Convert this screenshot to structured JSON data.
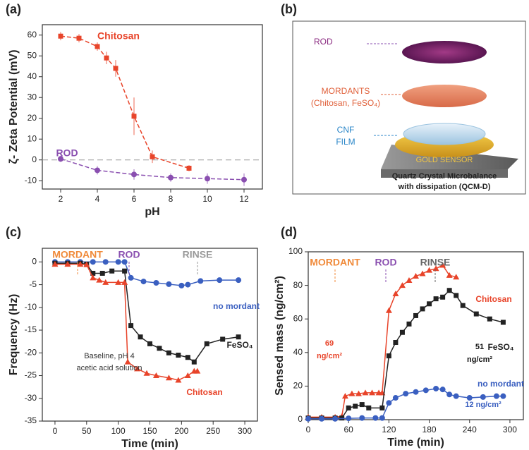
{
  "panel_labels": [
    "(a)",
    "(b)",
    "(c)",
    "(d)"
  ],
  "chart_data": [
    {
      "type": "line",
      "xlabel": "pH",
      "ylabel": "ζ- Zeta Potential (mV)",
      "xlim": [
        1,
        13
      ],
      "xticks": [
        2,
        4,
        6,
        8,
        10,
        12
      ],
      "ylim": [
        -14,
        65
      ],
      "yticks": [
        -10,
        0,
        10,
        20,
        30,
        40,
        50,
        60
      ],
      "reference_line": 0,
      "line_style": "dashed",
      "series": [
        {
          "name": "Chitosan",
          "color": "#e8442a",
          "marker": "square",
          "x": [
            2,
            3,
            4,
            4.5,
            5,
            6,
            7,
            9
          ],
          "values": [
            59.5,
            58.5,
            54.5,
            49,
            44,
            21,
            1.5,
            -4
          ],
          "errors": [
            2,
            2,
            2,
            3,
            4,
            9,
            3,
            1.5
          ]
        },
        {
          "name": "ROD",
          "color": "#8a4fb0",
          "marker": "circle",
          "x": [
            2,
            4,
            6,
            8,
            10,
            12
          ],
          "values": [
            0.5,
            -5,
            -7,
            -8.5,
            -9,
            -9.5
          ],
          "errors": [
            1.5,
            2,
            2.5,
            2,
            2.5,
            3
          ]
        }
      ]
    },
    {
      "type": "line",
      "xlabel": "Time (min)",
      "ylabel": "Frequency (Hz)",
      "xlim": [
        -20,
        320
      ],
      "xticks": [
        0,
        50,
        100,
        150,
        200,
        250,
        300
      ],
      "ylim": [
        -35,
        3
      ],
      "yticks": [
        0,
        -5,
        -10,
        -15,
        -20,
        -25,
        -30,
        -35
      ],
      "line_style": "solid",
      "annotations": [
        "MORDANT",
        "ROD",
        "RINSE",
        "Baseline, pH 4",
        "acetic acid solution"
      ],
      "series": [
        {
          "name": "no mordant",
          "color": "#3a5fc0",
          "marker": "circle",
          "x": [
            0,
            20,
            40,
            60,
            80,
            100,
            110,
            120,
            140,
            160,
            180,
            200,
            210,
            230,
            260,
            290
          ],
          "values": [
            0,
            0,
            0,
            0,
            0,
            0,
            0,
            -3.5,
            -4.3,
            -4.6,
            -4.9,
            -5.2,
            -5,
            -4.2,
            -4,
            -4
          ]
        },
        {
          "name": "FeSO₄",
          "color": "#222222",
          "marker": "square",
          "x": [
            0,
            20,
            40,
            50,
            60,
            75,
            90,
            110,
            120,
            135,
            150,
            165,
            180,
            195,
            210,
            220,
            240,
            265,
            290
          ],
          "values": [
            -0.3,
            -0.3,
            -0.3,
            -0.5,
            -2.5,
            -2.5,
            -2,
            -2,
            -14,
            -16.5,
            -18,
            -19,
            -20,
            -20.5,
            -21,
            -22,
            -18,
            -17,
            -16.5
          ]
        },
        {
          "name": "Chitosan",
          "color": "#e8442a",
          "marker": "triangle",
          "x": [
            0,
            20,
            40,
            50,
            60,
            70,
            80,
            100,
            110,
            115,
            130,
            145,
            160,
            180,
            195,
            210,
            220,
            225
          ],
          "values": [
            -0.5,
            -0.5,
            -0.5,
            -0.6,
            -3.5,
            -4,
            -4.5,
            -4.5,
            -4.5,
            -22,
            -23.5,
            -24.5,
            -25,
            -25.5,
            -26,
            -25,
            -24,
            -24
          ]
        }
      ]
    },
    {
      "type": "line",
      "xlabel": "Time (min)",
      "ylabel": "Sensed mass (ng/cm²)",
      "xlim": [
        0,
        320
      ],
      "xticks": [
        0,
        60,
        120,
        180,
        240,
        300
      ],
      "ylim": [
        0,
        100
      ],
      "yticks": [
        0,
        20,
        40,
        60,
        80,
        100
      ],
      "line_style": "solid",
      "annotations": [
        "MORDANT",
        "ROD",
        "RINSE",
        "69",
        "ng/cm²",
        "51",
        "ng/cm²",
        "12 ng/cm²"
      ],
      "series": [
        {
          "name": "Chitosan",
          "color": "#e8442a",
          "marker": "triangle",
          "x": [
            0,
            20,
            40,
            50,
            55,
            65,
            75,
            85,
            95,
            105,
            110,
            120,
            130,
            140,
            150,
            160,
            170,
            180,
            190,
            200,
            210,
            220
          ],
          "values": [
            1.5,
            1.5,
            1.5,
            2,
            14,
            15.5,
            15.5,
            16,
            16,
            16,
            16,
            65,
            75,
            80,
            83,
            85.5,
            87,
            89,
            90,
            92,
            86,
            85
          ]
        },
        {
          "name": "FeSO₄",
          "color": "#222222",
          "marker": "square",
          "x": [
            0,
            20,
            40,
            50,
            60,
            70,
            80,
            90,
            110,
            120,
            130,
            140,
            150,
            160,
            170,
            180,
            190,
            200,
            210,
            220,
            230,
            250,
            270,
            290
          ],
          "values": [
            1,
            1,
            1,
            1,
            7,
            8,
            9,
            7,
            7,
            38,
            46,
            52,
            57,
            62,
            66,
            69,
            72,
            73,
            77,
            74,
            68,
            63,
            60,
            58
          ]
        },
        {
          "name": "no mordant",
          "color": "#3a5fc0",
          "marker": "circle",
          "x": [
            0,
            20,
            40,
            60,
            80,
            100,
            110,
            120,
            130,
            145,
            160,
            175,
            190,
            200,
            210,
            220,
            240,
            260,
            280,
            290
          ],
          "values": [
            0.5,
            0.5,
            0.5,
            0.8,
            1,
            1,
            1,
            10,
            13,
            15.5,
            16.5,
            17.5,
            18.5,
            18,
            15,
            14,
            13,
            13.5,
            14,
            14
          ]
        }
      ]
    }
  ],
  "diagram": {
    "layers": [
      "ROD",
      "MORDANTS",
      "(Chitosan, FeSO₄)",
      "CNF",
      "FILM"
    ],
    "sensor": "GOLD SENSOR",
    "caption": [
      "Quartz Crystal Microbalance",
      "with dissipation (QCM-D)"
    ]
  }
}
